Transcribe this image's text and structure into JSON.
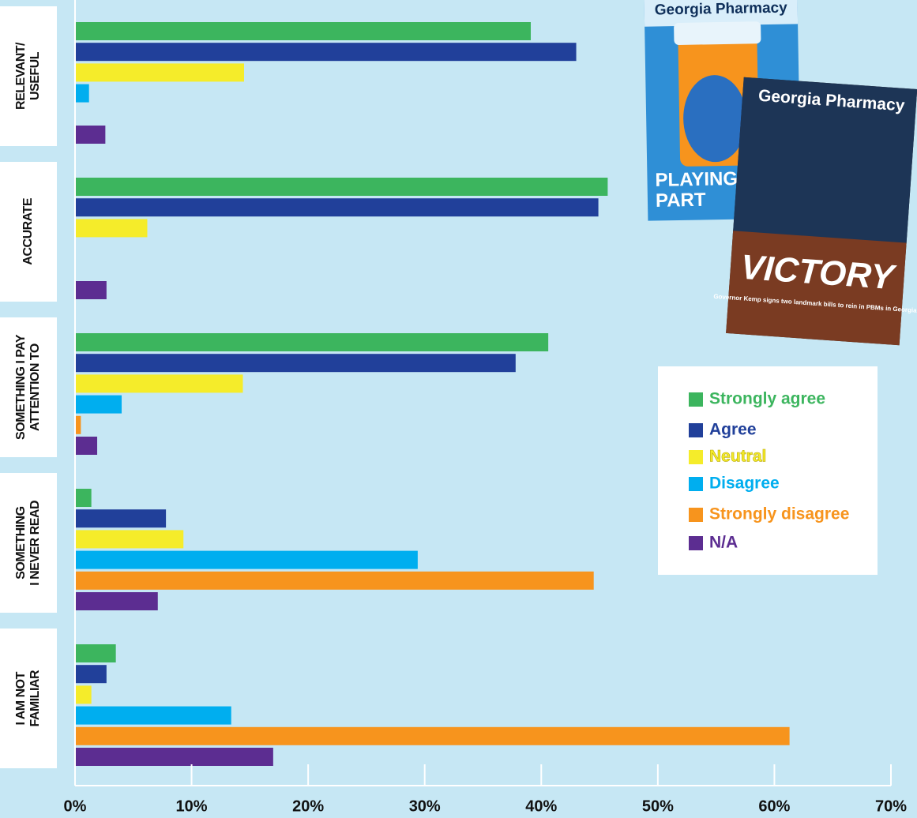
{
  "chart_data": {
    "type": "barh",
    "categories": [
      "RELEVANT/\nUSEFUL",
      "ACCURATE",
      "SOMETHING I PAY\nATTENTION TO",
      "SOMETHING\nI NEVER READ",
      "I AM NOT\nFAMILIAR"
    ],
    "series": [
      {
        "name": "Strongly agree",
        "color": "#3cb55e",
        "values": [
          39.1,
          45.7,
          40.6,
          1.4,
          3.5
        ]
      },
      {
        "name": "Agree",
        "color": "#21409a",
        "values": [
          43.0,
          44.9,
          37.8,
          7.8,
          2.7
        ]
      },
      {
        "name": "Neutral",
        "color": "#f5ec2a",
        "values": [
          14.5,
          6.2,
          14.4,
          9.3,
          1.4
        ]
      },
      {
        "name": "Disagree",
        "color": "#00aeef",
        "values": [
          1.2,
          0,
          4.0,
          29.4,
          13.4
        ]
      },
      {
        "name": "Strongly disagree",
        "color": "#f7941d",
        "values": [
          0,
          0,
          0.5,
          44.5,
          61.3
        ]
      },
      {
        "name": "N/A",
        "color": "#5c2d91",
        "values": [
          2.6,
          2.7,
          1.9,
          7.1,
          17.0
        ]
      }
    ],
    "xlim": [
      0,
      70
    ],
    "xticks": [
      {
        "value": 0,
        "label": "0%"
      },
      {
        "value": 10,
        "label": "10%"
      },
      {
        "value": 20,
        "label": "20%"
      },
      {
        "value": 30,
        "label": "30%"
      },
      {
        "value": 40,
        "label": "40%"
      },
      {
        "value": 50,
        "label": "50%"
      },
      {
        "value": 60,
        "label": "60%"
      },
      {
        "value": 70,
        "label": "70%"
      }
    ],
    "legend": "right",
    "annotations": [
      "Georgia Pharmacy",
      "PLAYING YO",
      "PART",
      "Georgia Pharmacy",
      "VICTORY",
      "Governor Kemp signs two landmark bills to rein in PBMs in Georgia"
    ]
  }
}
